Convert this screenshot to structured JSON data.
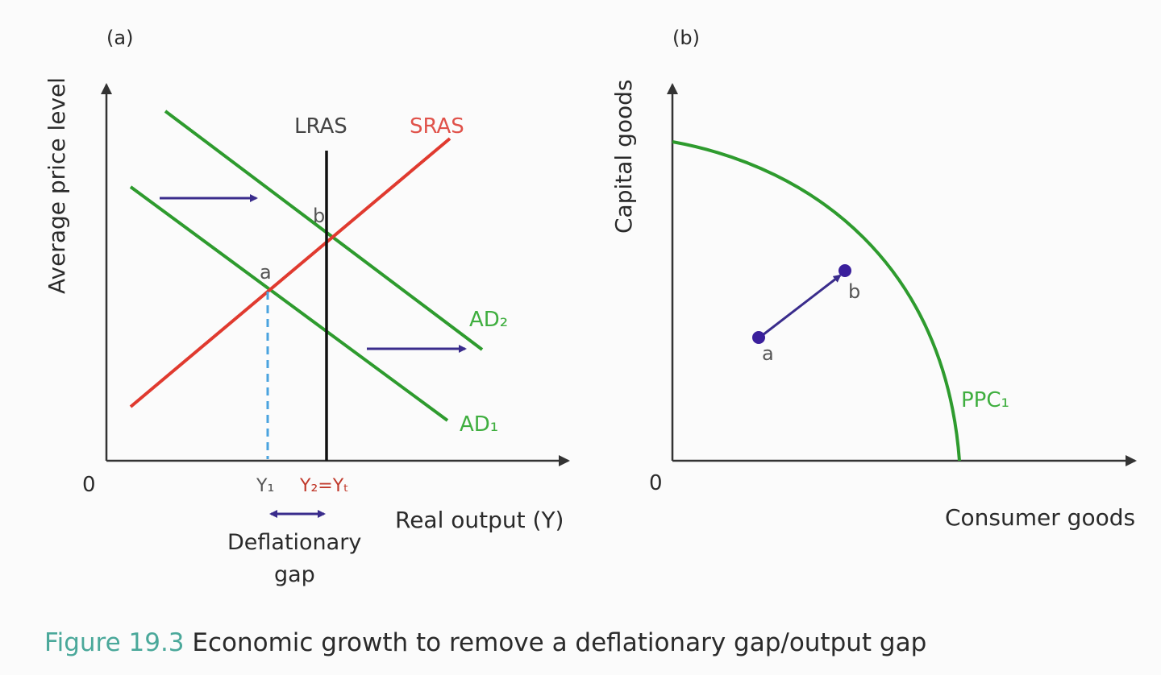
{
  "panel_a": {
    "letter": "(a)",
    "y_axis_label": "Average price level",
    "x_axis_label": "Real output (Y)",
    "origin_label": "0",
    "curves": {
      "lras": "LRAS",
      "sras": "SRAS",
      "ad2": "AD₂",
      "ad1": "AD₁"
    },
    "points": {
      "a": "a",
      "b": "b"
    },
    "ticks": {
      "y1": "Y₁",
      "y2": "Y₂=Yₜ"
    },
    "gap_label_line1": "Deflationary",
    "gap_label_line2": "gap"
  },
  "panel_b": {
    "letter": "(b)",
    "y_axis_label": "Capital goods",
    "x_axis_label": "Consumer goods",
    "origin_label": "0",
    "curve": "PPC₁",
    "points": {
      "a": "a",
      "b": "b"
    }
  },
  "caption": {
    "number": "Figure 19.3",
    "text": " Economic growth to remove a deflationary gap/output gap"
  },
  "colors": {
    "ad": "#2e9b2e",
    "sras": "#e03a2f",
    "lras": "#111111",
    "arrow": "#3a2c8c",
    "dashed": "#4aa3df",
    "ppc": "#2e9b2e",
    "point": "#3a1f9c"
  }
}
